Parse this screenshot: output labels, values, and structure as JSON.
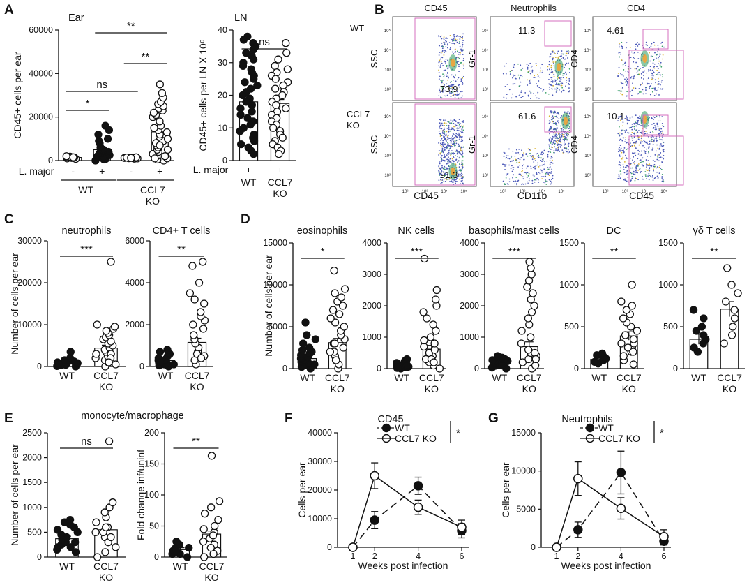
{
  "panels": {
    "A": "A",
    "B": "B",
    "C": "C",
    "D": "D",
    "E": "E",
    "F": "F",
    "G": "G"
  },
  "colors": {
    "filled": "#111111",
    "open": "#ffffff",
    "gate": "#d66fbf",
    "line": "#111111"
  },
  "chart_data": [
    {
      "id": "A-ear",
      "type": "bar",
      "title": "Ear",
      "ylabel": "CD45+ cells per ear",
      "ylim": [
        0,
        60000
      ],
      "yticks": [
        "0",
        "20000",
        "40000",
        "60000"
      ],
      "categories": [
        "-",
        "+",
        "-",
        "+"
      ],
      "xrow_label": "L. major",
      "groups": [
        "WT",
        "CCL7\nKO"
      ],
      "group_of": [
        0,
        0,
        1,
        1
      ],
      "values": [
        1400,
        5000,
        1200,
        13200
      ],
      "sem": [
        400,
        1200,
        300,
        2500
      ],
      "fills": [
        "open",
        "filled",
        "open",
        "open"
      ],
      "points": [
        [
          800,
          1000,
          1200,
          1400,
          1600,
          1800,
          2000,
          1500
        ],
        [
          0,
          500,
          800,
          1200,
          1500,
          2000,
          2500,
          3000,
          3500,
          4000,
          4500,
          5000,
          6000,
          8000,
          9000,
          10000,
          12000,
          14000,
          16000
        ],
        [
          900,
          1000,
          1100,
          1200,
          1300,
          1400,
          1500,
          1200
        ],
        [
          0,
          500,
          1000,
          2000,
          3000,
          4000,
          5000,
          6000,
          7000,
          8000,
          9000,
          10000,
          11000,
          12000,
          13000,
          14000,
          15000,
          16000,
          18000,
          20000,
          21000,
          22000,
          23000,
          24000,
          25000,
          26000,
          27000,
          29000,
          31000,
          5000,
          7000,
          2000,
          1000,
          35000
        ]
      ],
      "point_fills": [
        "open",
        "filled",
        "open",
        "open"
      ],
      "sig": [
        {
          "a": 0,
          "b": 1,
          "text": "*"
        },
        {
          "a": 0,
          "b": 2,
          "text": "ns"
        },
        {
          "a": 2,
          "b": 3,
          "text": "**"
        },
        {
          "a": 1,
          "b": 3,
          "text": "**"
        }
      ]
    },
    {
      "id": "A-ln",
      "type": "bar",
      "title": "LN",
      "ylabel": "CD45+ cells per LN X 10⁶",
      "ylim": [
        0,
        40
      ],
      "yticks": [
        "0",
        "10",
        "20",
        "30",
        "40"
      ],
      "categories": [
        "+",
        "+"
      ],
      "xrow_label": "L. major",
      "groups": [
        "WT",
        "CCL7\nKO"
      ],
      "group_of": [
        0,
        1
      ],
      "values": [
        18,
        17.5
      ],
      "sem": [
        1.5,
        1.2
      ],
      "fills": [
        "open",
        "open"
      ],
      "points": [
        [
          38,
          37,
          36,
          35,
          34,
          33,
          32,
          31,
          30,
          29,
          28,
          27,
          26,
          25,
          24,
          23,
          22,
          21,
          20,
          19,
          18,
          17,
          16,
          15,
          14,
          13,
          12,
          11,
          10,
          9,
          8,
          7,
          6,
          5,
          4,
          3,
          2
        ],
        [
          36,
          33,
          31,
          29,
          28,
          27,
          26,
          25,
          24,
          23,
          22,
          21,
          20,
          19,
          18,
          17,
          16,
          15,
          14,
          13,
          12,
          11,
          10,
          9,
          8,
          7,
          6,
          5,
          4,
          3,
          2
        ]
      ],
      "point_fills": [
        "filled",
        "open"
      ],
      "sig": [
        {
          "a": 0,
          "b": 1,
          "text": "ns"
        }
      ]
    },
    {
      "id": "C-neut",
      "type": "bar",
      "title": "neutrophils",
      "ylabel": "Number of cells per ear",
      "ylim": [
        0,
        30000
      ],
      "yticks": [
        "0",
        "10000",
        "20000",
        "30000"
      ],
      "categories": [
        "WT",
        "CCL7\nKO"
      ],
      "values": [
        800,
        4400
      ],
      "sem": [
        200,
        700
      ],
      "fills": [
        "open",
        "open"
      ],
      "points": [
        [
          0,
          100,
          200,
          300,
          400,
          500,
          600,
          700,
          800,
          1000,
          1200,
          1400,
          1500,
          2000,
          3500,
          1000,
          500
        ],
        [
          0,
          500,
          1000,
          1500,
          2000,
          2500,
          3000,
          3500,
          4000,
          4500,
          5000,
          5500,
          6000,
          6500,
          7000,
          7500,
          8000,
          8500,
          9000,
          9500,
          10000,
          3000,
          2000,
          1000,
          25000
        ]
      ],
      "point_fills": [
        "filled",
        "open"
      ],
      "sig": [
        {
          "a": 0,
          "b": 1,
          "text": "***"
        }
      ]
    },
    {
      "id": "C-cd4",
      "type": "bar",
      "title": "CD4+ T cells",
      "ylabel": "",
      "ylim": [
        0,
        6000
      ],
      "yticks": [
        "0",
        "2000",
        "4000",
        "6000"
      ],
      "categories": [
        "WT",
        "CCL7\nKO"
      ],
      "values": [
        280,
        1150
      ],
      "sem": [
        60,
        200
      ],
      "fills": [
        "open",
        "open"
      ],
      "points": [
        [
          0,
          50,
          100,
          150,
          200,
          250,
          300,
          350,
          400,
          500,
          600,
          700,
          800,
          200,
          100
        ],
        [
          100,
          300,
          500,
          700,
          900,
          1100,
          1300,
          1500,
          1800,
          2000,
          2200,
          2400,
          2600,
          3000,
          3200,
          3500,
          4000,
          4800,
          5000,
          600,
          400
        ]
      ],
      "point_fills": [
        "filled",
        "open"
      ],
      "sig": [
        {
          "a": 0,
          "b": 1,
          "text": "**"
        }
      ]
    },
    {
      "id": "D-eos",
      "type": "bar",
      "title": "eosinophils",
      "ylabel": "Number of cells per ear",
      "ylim": [
        0,
        15000
      ],
      "yticks": [
        "0",
        "5000",
        "10000",
        "15000"
      ],
      "categories": [
        "WT",
        "CCL7\nKO"
      ],
      "values": [
        1200,
        3100
      ],
      "sem": [
        300,
        500
      ],
      "fills": [
        "open",
        "open"
      ],
      "points": [
        [
          0,
          200,
          400,
          600,
          800,
          1000,
          1200,
          1400,
          1600,
          1800,
          2000,
          2200,
          2500,
          3000,
          3500,
          4000,
          5500,
          500
        ],
        [
          0,
          500,
          1000,
          1500,
          2000,
          2500,
          3000,
          3500,
          4000,
          4500,
          5000,
          5500,
          6000,
          6500,
          7000,
          7500,
          8000,
          8500,
          9000,
          9500,
          11700,
          2000,
          1000,
          3000
        ]
      ],
      "point_fills": [
        "filled",
        "open"
      ],
      "sig": [
        {
          "a": 0,
          "b": 1,
          "text": "*"
        }
      ]
    },
    {
      "id": "D-nk",
      "type": "bar",
      "title": "NK cells",
      "ylabel": "",
      "ylim": [
        0,
        4000
      ],
      "yticks": [
        "0",
        "1000",
        "2000",
        "3000",
        "4000"
      ],
      "categories": [
        "WT",
        "CCL7\nKO"
      ],
      "values": [
        100,
        620
      ],
      "sem": [
        20,
        120
      ],
      "fills": [
        "open",
        "open"
      ],
      "points": [
        [
          0,
          20,
          40,
          60,
          80,
          100,
          120,
          140,
          160,
          180,
          200,
          250,
          300,
          100,
          50
        ],
        [
          0,
          100,
          200,
          300,
          400,
          500,
          600,
          700,
          800,
          900,
          1000,
          1200,
          1400,
          1600,
          1800,
          2000,
          2200,
          2500,
          3500,
          300,
          200
        ]
      ],
      "point_fills": [
        "filled",
        "open"
      ],
      "sig": [
        {
          "a": 0,
          "b": 1,
          "text": "***"
        }
      ]
    },
    {
      "id": "D-baso",
      "type": "bar",
      "title": "basophils/mast cells",
      "ylabel": "",
      "ylim": [
        0,
        4000
      ],
      "yticks": [
        "0",
        "1000",
        "2000",
        "3000",
        "4000"
      ],
      "categories": [
        "WT",
        "CCL7\nKO"
      ],
      "values": [
        150,
        700
      ],
      "sem": [
        30,
        150
      ],
      "fills": [
        "open",
        "open"
      ],
      "points": [
        [
          0,
          30,
          60,
          90,
          120,
          150,
          180,
          210,
          240,
          270,
          300,
          350,
          400,
          100
        ],
        [
          0,
          100,
          200,
          300,
          400,
          500,
          600,
          800,
          1000,
          1200,
          1400,
          1600,
          1800,
          2000,
          2200,
          2400,
          2600,
          2800,
          3000,
          3200,
          3400,
          500,
          300
        ]
      ],
      "point_fills": [
        "filled",
        "open"
      ],
      "sig": [
        {
          "a": 0,
          "b": 1,
          "text": "***"
        }
      ]
    },
    {
      "id": "D-dc",
      "type": "bar",
      "title": "DC",
      "ylabel": "",
      "ylim": [
        0,
        1500
      ],
      "yticks": [
        "0",
        "500",
        "1000",
        "1500"
      ],
      "categories": [
        "WT",
        "CCL7\nKO"
      ],
      "values": [
        110,
        390
      ],
      "sem": [
        20,
        50
      ],
      "fills": [
        "open",
        "open"
      ],
      "points": [
        [
          60,
          80,
          100,
          120,
          140,
          160,
          180
        ],
        [
          50,
          100,
          150,
          200,
          250,
          300,
          350,
          400,
          450,
          500,
          550,
          600,
          650,
          700,
          750,
          800,
          1000,
          300,
          250,
          200
        ]
      ],
      "point_fills": [
        "filled",
        "open"
      ],
      "sig": [
        {
          "a": 0,
          "b": 1,
          "text": "**"
        }
      ]
    },
    {
      "id": "D-gd",
      "type": "bar",
      "title": "γδ T cells",
      "ylabel": "",
      "ylim": [
        0,
        1500
      ],
      "yticks": [
        "0",
        "500",
        "1000",
        "1500"
      ],
      "categories": [
        "WT",
        "CCL7\nKO"
      ],
      "values": [
        350,
        710
      ],
      "sem": [
        60,
        90
      ],
      "fills": [
        "open",
        "open"
      ],
      "points": [
        [
          200,
          250,
          300,
          350,
          400,
          450,
          500,
          600,
          700
        ],
        [
          300,
          400,
          500,
          600,
          700,
          800,
          900,
          1000,
          1200
        ]
      ],
      "point_fills": [
        "filled",
        "open"
      ],
      "sig": [
        {
          "a": 0,
          "b": 1,
          "text": "**"
        }
      ]
    },
    {
      "id": "E-mono",
      "type": "bar",
      "title": "monocyte/macrophage",
      "ylabel": "Number of cells per ear",
      "ylim": [
        0,
        2500
      ],
      "yticks": [
        "0",
        "500",
        "1000",
        "1500",
        "2000",
        "2500"
      ],
      "categories": [
        "WT",
        "CCL7\nKO"
      ],
      "values": [
        370,
        550
      ],
      "sem": [
        50,
        70
      ],
      "fills": [
        "open",
        "open"
      ],
      "points": [
        [
          100,
          150,
          200,
          250,
          300,
          350,
          400,
          450,
          500,
          550,
          600,
          650,
          700,
          750,
          200,
          300
        ],
        [
          0,
          100,
          200,
          300,
          400,
          500,
          600,
          700,
          800,
          900,
          1000,
          1100,
          300,
          400,
          500,
          600,
          2330
        ]
      ],
      "point_fills": [
        "filled",
        "open"
      ],
      "sig": [
        {
          "a": 0,
          "b": 1,
          "text": "ns"
        }
      ]
    },
    {
      "id": "E-fold",
      "type": "bar",
      "title": "",
      "ylabel": "Fold change inf/uninf",
      "ylim": [
        0,
        200
      ],
      "yticks": [
        "0",
        "50",
        "100",
        "150",
        "200"
      ],
      "categories": [
        "WT",
        "CCL7\nKO"
      ],
      "values": [
        12,
        37
      ],
      "sem": [
        3,
        5
      ],
      "fills": [
        "open",
        "open"
      ],
      "points": [
        [
          0,
          5,
          10,
          15,
          20,
          25,
          5,
          10,
          15
        ],
        [
          0,
          10,
          20,
          30,
          40,
          50,
          60,
          70,
          80,
          90,
          5,
          15,
          25,
          35,
          45,
          163
        ]
      ],
      "point_fills": [
        "filled",
        "open"
      ],
      "sig": [
        {
          "a": 0,
          "b": 1,
          "text": "**"
        }
      ]
    },
    {
      "id": "F",
      "type": "line",
      "title": "CD45",
      "xlabel": "Weeks post infection",
      "ylabel": "Cells per ear",
      "ylim": [
        0,
        40000
      ],
      "yticks": [
        "0",
        "10000",
        "20000",
        "30000",
        "40000"
      ],
      "x": [
        1,
        2,
        4,
        6
      ],
      "xticks": [
        "1",
        "2",
        "4",
        "6"
      ],
      "series": [
        {
          "name": "WT",
          "values": [
            0,
            9500,
            21500,
            5800
          ],
          "sem": [
            0,
            3000,
            3000,
            2500
          ],
          "marker": "filled",
          "dash": true
        },
        {
          "name": "CCL7 KO",
          "values": [
            0,
            25000,
            14000,
            7000
          ],
          "sem": [
            0,
            4500,
            2500,
            2500
          ],
          "marker": "open",
          "dash": false
        }
      ],
      "legend_sig": "*"
    },
    {
      "id": "G",
      "type": "line",
      "title": "Neutrophils",
      "xlabel": "Weeks post infection",
      "ylabel": "Cells per ear",
      "ylim": [
        0,
        15000
      ],
      "yticks": [
        "0",
        "5000",
        "10000",
        "15000"
      ],
      "x": [
        1,
        2,
        4,
        6
      ],
      "xticks": [
        "1",
        "2",
        "4",
        "6"
      ],
      "series": [
        {
          "name": "WT",
          "values": [
            0,
            2300,
            9800,
            800
          ],
          "sem": [
            0,
            1000,
            2800,
            500
          ],
          "marker": "filled",
          "dash": true
        },
        {
          "name": "CCL7 KO",
          "values": [
            0,
            9000,
            5100,
            1400
          ],
          "sem": [
            0,
            2200,
            1400,
            900
          ],
          "marker": "open",
          "dash": false
        }
      ],
      "legend_sig": "*"
    }
  ],
  "flow": {
    "columns": [
      "CD45",
      "Neutrophils",
      "CD4"
    ],
    "row_labels": [
      "WT",
      "CCL7\nKO"
    ],
    "y_axes": [
      "SSC",
      "Gr-1",
      "CD4"
    ],
    "x_axes": [
      "CD45",
      "CD11b",
      "CD45"
    ],
    "gates": [
      [
        "73.9",
        "11.3",
        "4.61"
      ],
      [
        "91.3",
        "61.6",
        "10.1"
      ]
    ]
  }
}
